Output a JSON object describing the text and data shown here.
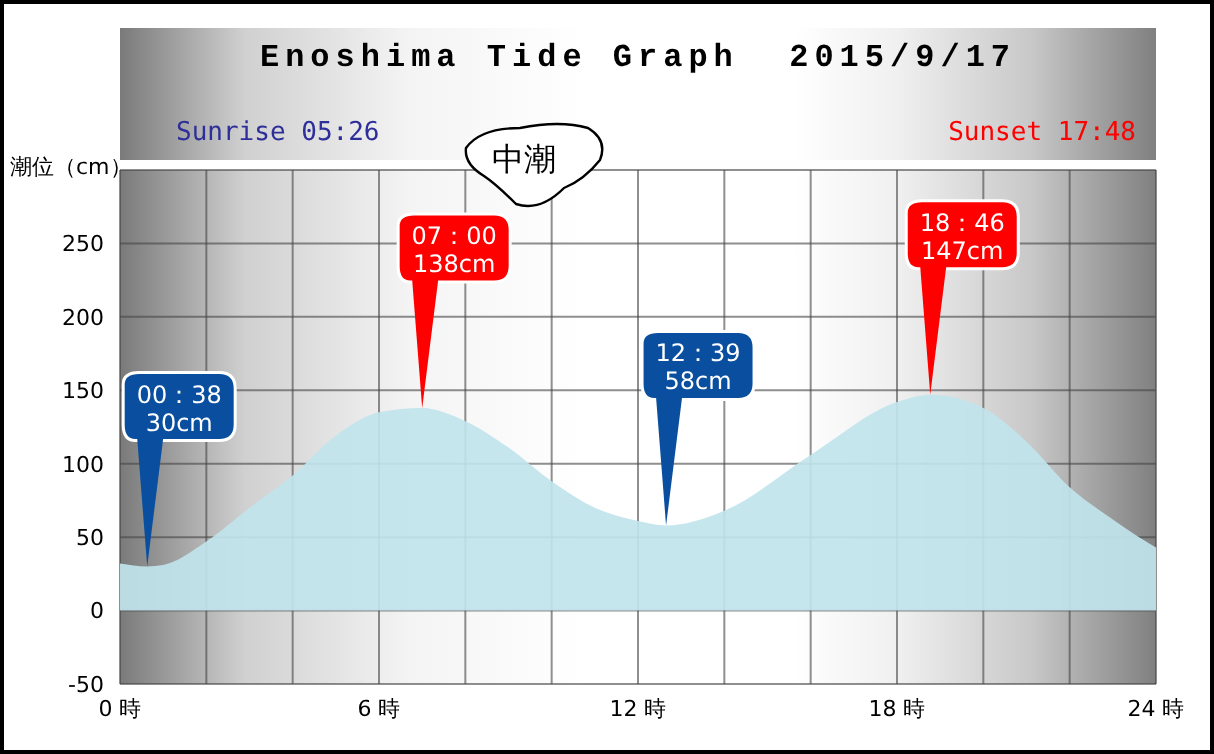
{
  "chart_data": {
    "type": "area",
    "title": "Enoshima Tide Graph  2015/9/17",
    "ylabel": "潮位（cm）",
    "x": [
      0,
      0.63,
      1,
      2,
      3,
      4,
      5,
      6,
      7,
      8,
      9,
      10,
      11,
      12,
      12.65,
      14,
      16,
      18,
      18.77,
      20,
      21,
      22,
      23,
      23.5,
      24
    ],
    "series": [
      {
        "color": "#c0e4ec",
        "values": [
          32,
          30,
          31,
          47,
          70,
          92,
          119,
          135,
          138,
          129,
          111,
          88,
          70,
          61,
          58,
          68,
          106,
          142,
          147,
          138,
          115,
          84,
          62,
          52,
          43
        ]
      }
    ],
    "xlim": [
      0,
      24
    ],
    "xticks": [
      {
        "value": 0,
        "label": "0 時"
      },
      {
        "value": 2,
        "label": null
      },
      {
        "value": 4,
        "label": null
      },
      {
        "value": 6,
        "label": "6 時"
      },
      {
        "value": 8,
        "label": null
      },
      {
        "value": 10,
        "label": null
      },
      {
        "value": 12,
        "label": "12 時"
      },
      {
        "value": 14,
        "label": null
      },
      {
        "value": 16,
        "label": null
      },
      {
        "value": 18,
        "label": "18 時"
      },
      {
        "value": 20,
        "label": null
      },
      {
        "value": 22,
        "label": null
      },
      {
        "value": 24,
        "label": "24 時"
      }
    ],
    "ylim": [
      -50,
      300
    ],
    "yticks": [
      -50,
      0,
      50,
      100,
      150,
      200,
      250
    ],
    "grid": true,
    "annotations": [
      "Sunrise 05:26",
      "Sunset 17:48",
      "中潮",
      {
        "text": "00：38\n30cm",
        "x": 0.63,
        "y": 30
      },
      {
        "text": "07：00\n138cm",
        "x": 7,
        "y": 138
      },
      {
        "text": "12：39\n58cm",
        "x": 12.65,
        "y": 58
      },
      {
        "text": "18：46\n147cm",
        "x": 18.77,
        "y": 147
      }
    ]
  }
}
